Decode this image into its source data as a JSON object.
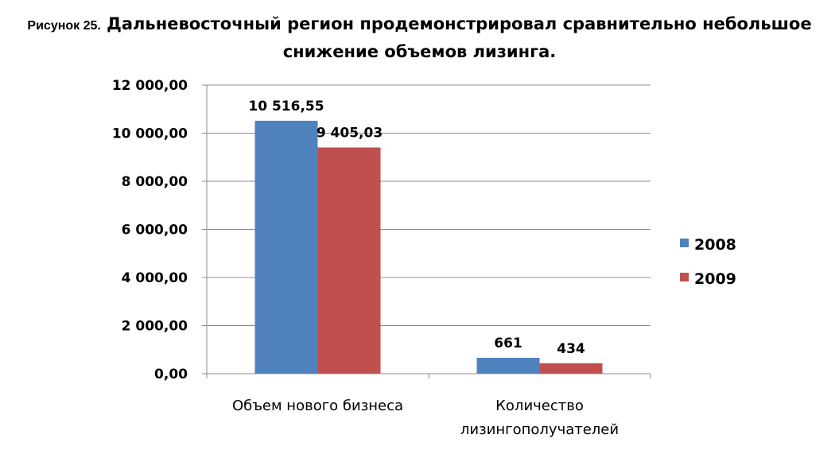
{
  "caption": {
    "lead": "Рисунок 25.",
    "line1": "Дальневосточный регион продемонстрировал сравнительно небольшое",
    "line2": "снижение объемов лизинга."
  },
  "chart_data": {
    "type": "bar",
    "title": "",
    "xlabel": "",
    "ylabel": "",
    "categories": [
      "Объем нового бизнеса",
      "Количество лизингополучателей"
    ],
    "category_lines": [
      [
        "Объем нового бизнеса"
      ],
      [
        "Количество",
        "лизингополучателей"
      ]
    ],
    "series": [
      {
        "name": "2008",
        "color": "#4f81bd",
        "values": [
          10516.55,
          661
        ],
        "labels": [
          "10 516,55",
          "661"
        ]
      },
      {
        "name": "2009",
        "color": "#c0504d",
        "values": [
          9405.03,
          434
        ],
        "labels": [
          "9 405,03",
          "434"
        ]
      }
    ],
    "ylim": [
      0,
      12000
    ],
    "yticks": [
      {
        "value": 0,
        "label": "0,00"
      },
      {
        "value": 2000,
        "label": "2 000,00"
      },
      {
        "value": 4000,
        "label": "4 000,00"
      },
      {
        "value": 6000,
        "label": "6 000,00"
      },
      {
        "value": 8000,
        "label": "8 000,00"
      },
      {
        "value": 10000,
        "label": "10 000,00"
      },
      {
        "value": 12000,
        "label": "12 000,00"
      }
    ],
    "grid": true,
    "legend_position": "right"
  }
}
